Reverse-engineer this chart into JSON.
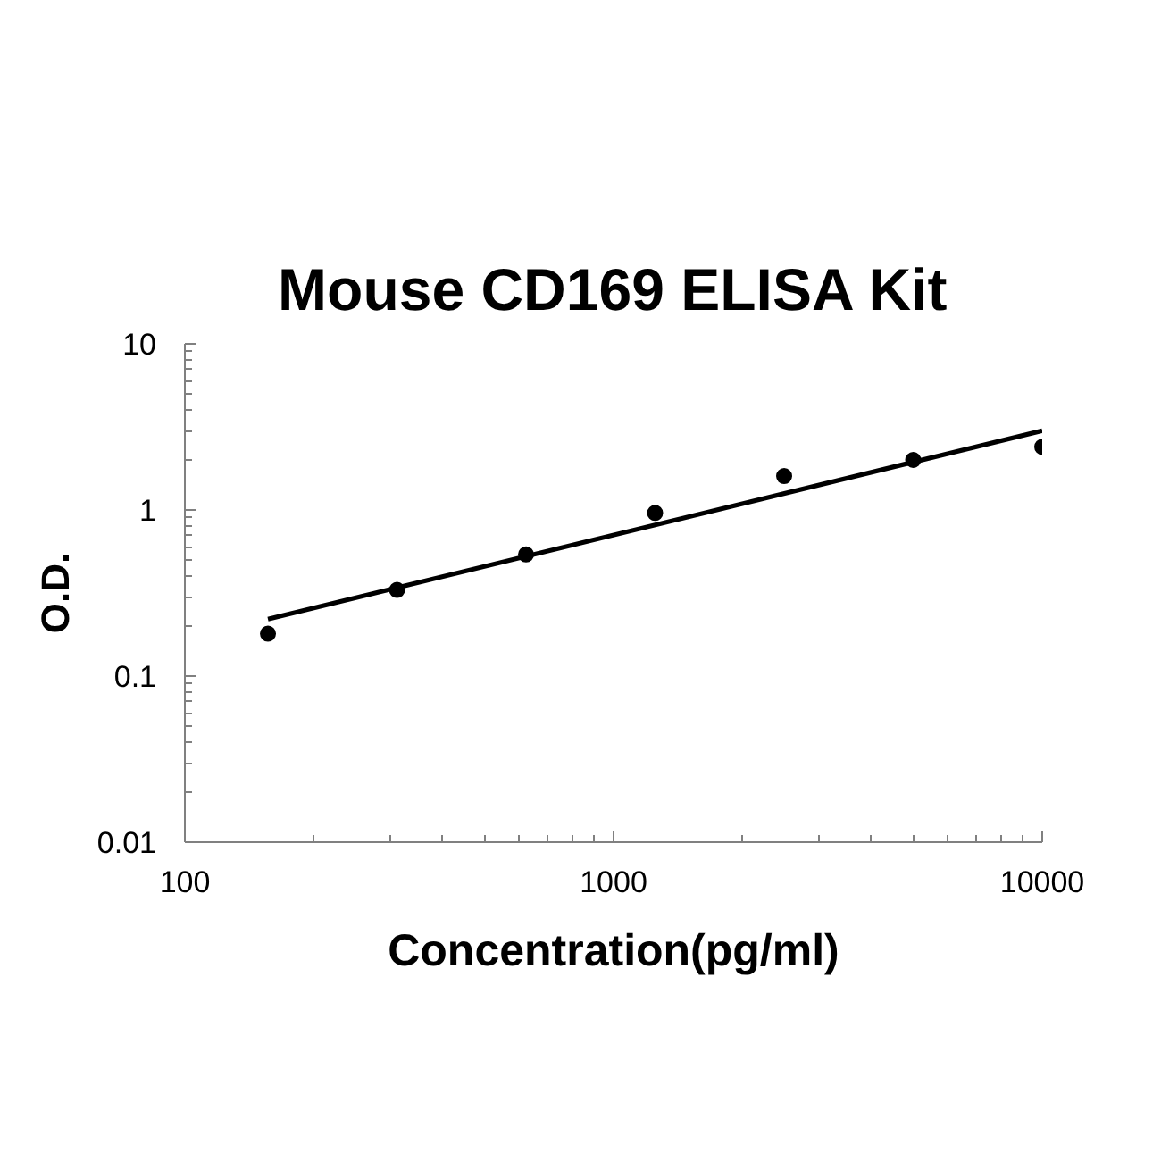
{
  "chart_data": {
    "type": "scatter",
    "title": "Mouse CD169 ELISA Kit",
    "xlabel": "Concentration(pg/ml)",
    "ylabel": "O.D.",
    "x": [
      156.25,
      312.5,
      625,
      1250,
      2500,
      5000,
      10000
    ],
    "series": [
      {
        "color": "#000000",
        "values": [
          0.18,
          0.33,
          0.54,
          0.96,
          1.6,
          2.0,
          2.4
        ]
      },
      {
        "type": "line",
        "color": "#000000",
        "marker": "none",
        "line_style": "solid",
        "x": [
          156.25,
          10000
        ],
        "values": [
          0.22,
          3.0
        ]
      }
    ],
    "marker": "circle",
    "log": "xy",
    "xlim": [
      100,
      10000
    ],
    "ylim": [
      0.01,
      10
    ],
    "xticks": [
      100,
      {
        "value": 200,
        "label": null
      },
      {
        "value": 300,
        "label": null
      },
      {
        "value": 400,
        "label": null
      },
      {
        "value": 500,
        "label": null
      },
      {
        "value": 600,
        "label": null
      },
      {
        "value": 700,
        "label": null
      },
      {
        "value": 800,
        "label": null
      },
      {
        "value": 900,
        "label": null
      },
      1000,
      {
        "value": 2000,
        "label": null
      },
      {
        "value": 3000,
        "label": null
      },
      {
        "value": 4000,
        "label": null
      },
      {
        "value": 5000,
        "label": null
      },
      {
        "value": 6000,
        "label": null
      },
      {
        "value": 7000,
        "label": null
      },
      {
        "value": 8000,
        "label": null
      },
      {
        "value": 9000,
        "label": null
      },
      10000
    ],
    "yticks": [
      0.01,
      {
        "value": 0.02,
        "label": null
      },
      {
        "value": 0.03,
        "label": null
      },
      {
        "value": 0.04,
        "label": null
      },
      {
        "value": 0.05,
        "label": null
      },
      {
        "value": 0.06,
        "label": null
      },
      {
        "value": 0.07,
        "label": null
      },
      {
        "value": 0.08,
        "label": null
      },
      {
        "value": 0.09,
        "label": null
      },
      0.1,
      {
        "value": 0.2,
        "label": null
      },
      {
        "value": 0.3,
        "label": null
      },
      {
        "value": 0.4,
        "label": null
      },
      {
        "value": 0.5,
        "label": null
      },
      {
        "value": 0.6,
        "label": null
      },
      {
        "value": 0.7,
        "label": null
      },
      {
        "value": 0.8,
        "label": null
      },
      {
        "value": 0.9,
        "label": null
      },
      1,
      {
        "value": 2,
        "label": null
      },
      {
        "value": 3,
        "label": null
      },
      {
        "value": 4,
        "label": null
      },
      {
        "value": 5,
        "label": null
      },
      {
        "value": 6,
        "label": null
      },
      {
        "value": 7,
        "label": null
      },
      {
        "value": 8,
        "label": null
      },
      {
        "value": 9,
        "label": null
      },
      10
    ],
    "grid": false
  }
}
